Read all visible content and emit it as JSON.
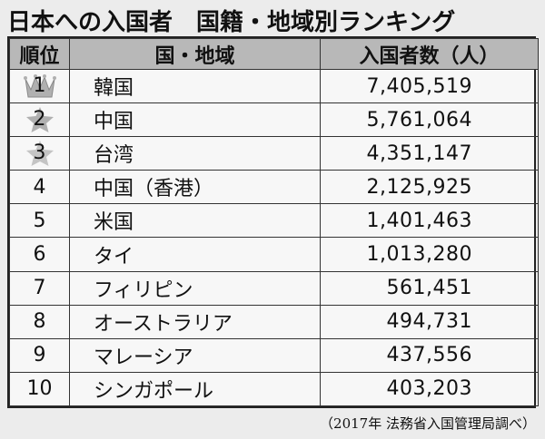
{
  "title": "日本への入国者　国籍・地域別ランキング",
  "headers": {
    "rank": "順位",
    "country": "国・地域",
    "count": "入国者数（人）"
  },
  "rows": [
    {
      "rank": "1",
      "country": "韓国",
      "count": "7,405,519",
      "icon": "crown-icon"
    },
    {
      "rank": "2",
      "country": "中国",
      "count": "5,761,064",
      "icon": "star-icon"
    },
    {
      "rank": "3",
      "country": "台湾",
      "count": "4,351,147",
      "icon": "star-icon"
    },
    {
      "rank": "4",
      "country": "中国（香港）",
      "count": "2,125,925"
    },
    {
      "rank": "5",
      "country": "米国",
      "count": "1,401,463"
    },
    {
      "rank": "6",
      "country": "タイ",
      "count": "1,013,280"
    },
    {
      "rank": "7",
      "country": "フィリピン",
      "count": "561,451"
    },
    {
      "rank": "8",
      "country": "オーストラリア",
      "count": "494,731"
    },
    {
      "rank": "9",
      "country": "マレーシア",
      "count": "437,556"
    },
    {
      "rank": "10",
      "country": "シンガポール",
      "count": "403,203"
    }
  ],
  "source": "（2017年 法務省入国管理局調べ）",
  "colors": {
    "header_bg": "#b8b8b8",
    "icon_fill": "#b0b0b0"
  }
}
